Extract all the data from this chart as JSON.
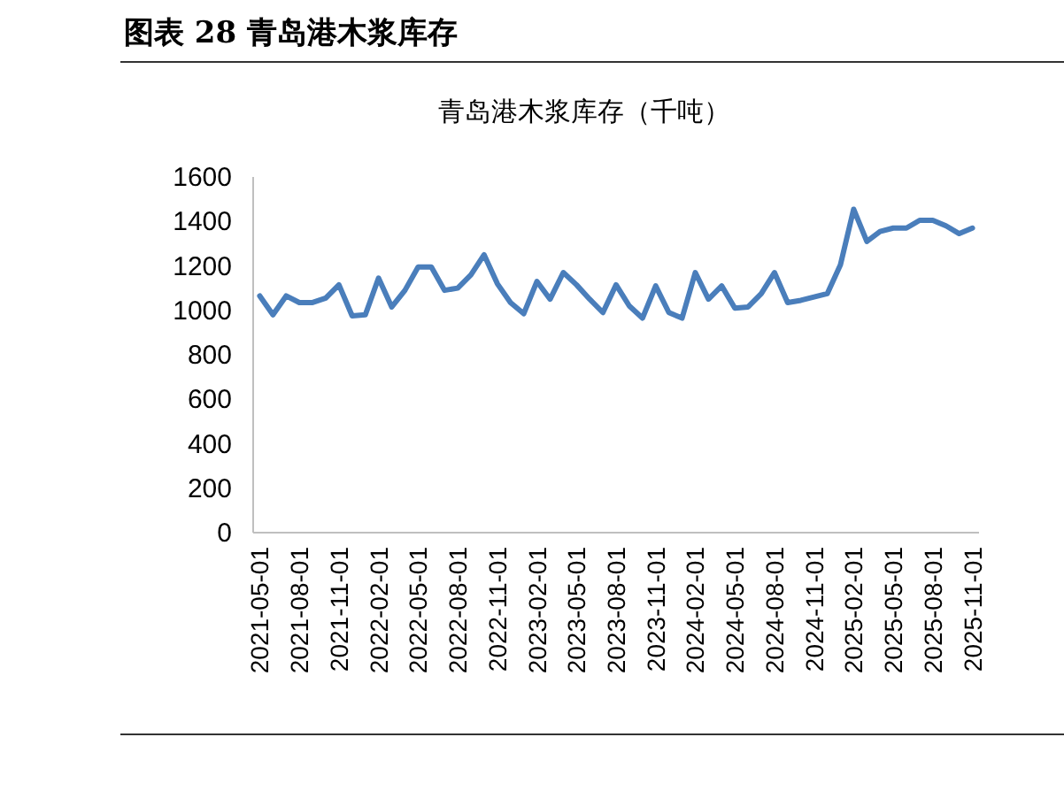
{
  "chart_data": {
    "type": "line",
    "title": "图表 28 青岛港木浆库存",
    "subtitle": "青岛港木浆库存（千吨）",
    "categories": [
      "2021-05-01",
      null,
      null,
      "2021-08-01",
      null,
      null,
      "2021-11-01",
      null,
      null,
      "2022-02-01",
      null,
      null,
      "2022-05-01",
      null,
      null,
      "2022-08-01",
      null,
      null,
      "2022-11-01",
      null,
      null,
      "2023-02-01",
      null,
      null,
      "2023-05-01",
      null,
      null,
      "2023-08-01",
      null,
      null,
      "2023-11-01",
      null,
      null,
      "2024-02-01",
      null,
      null,
      "2024-05-01",
      null,
      null,
      "2024-08-01",
      null,
      null,
      "2024-11-01",
      null,
      null,
      "2025-02-01",
      null,
      null,
      "2025-05-01",
      null,
      null,
      "2025-08-01",
      null,
      null,
      "2025-11-01"
    ],
    "series": [
      {
        "color": "#4a7ebb",
        "values": [
          1065,
          980,
          1065,
          1035,
          1035,
          1055,
          1115,
          975,
          980,
          1145,
          1015,
          1090,
          1195,
          1195,
          1090,
          1100,
          1160,
          1250,
          1120,
          1035,
          985,
          1130,
          1050,
          1170,
          1115,
          1050,
          990,
          1115,
          1020,
          965,
          1110,
          990,
          965,
          1170,
          1050,
          1110,
          1010,
          1015,
          1075,
          1170,
          1035,
          1045,
          1060,
          1075,
          1205,
          1455,
          1310,
          1355,
          1370,
          1370,
          1405,
          1405,
          1380,
          1345,
          1370
        ]
      }
    ],
    "ylim": [
      0,
      1600
    ],
    "yticks": [
      0,
      200,
      400,
      600,
      800,
      1000,
      1200,
      1400,
      1600
    ]
  }
}
